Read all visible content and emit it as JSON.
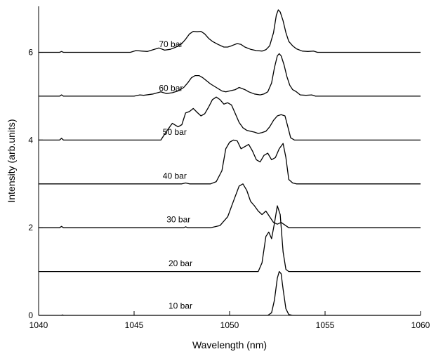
{
  "chart_data": {
    "type": "line",
    "xlabel": "Wavelength (nm)",
    "ylabel": "Intensity (arb.units)",
    "xlim": [
      1040,
      1060
    ],
    "ylim": [
      0,
      7.05
    ],
    "xticks": [
      1040,
      1045,
      1050,
      1055,
      1060
    ],
    "yticks": [
      0,
      2,
      4,
      6
    ],
    "grid": false,
    "legend": "none (labels placed beside each trace)",
    "line_color": "#000000",
    "series": [
      {
        "name": "10 bar",
        "label_at": [
          1046.8,
          0.15
        ],
        "points": [
          [
            1040,
            0
          ],
          [
            1041.2,
            0
          ],
          [
            1041.25,
            0.01
          ],
          [
            1041.3,
            0
          ],
          [
            1052.0,
            0
          ],
          [
            1052.2,
            0.06
          ],
          [
            1052.35,
            0.35
          ],
          [
            1052.5,
            0.85
          ],
          [
            1052.6,
            1.0
          ],
          [
            1052.7,
            0.95
          ],
          [
            1052.8,
            0.6
          ],
          [
            1052.95,
            0.15
          ],
          [
            1053.1,
            0.02
          ],
          [
            1053.3,
            0
          ],
          [
            1060,
            0
          ]
        ]
      },
      {
        "name": "20 bar",
        "label_at": [
          1046.8,
          1.12
        ],
        "points": [
          [
            1040,
            1
          ],
          [
            1051.5,
            1
          ],
          [
            1051.7,
            1.2
          ],
          [
            1051.9,
            1.8
          ],
          [
            1052.05,
            1.9
          ],
          [
            1052.2,
            1.75
          ],
          [
            1052.35,
            2.1
          ],
          [
            1052.5,
            2.5
          ],
          [
            1052.65,
            2.3
          ],
          [
            1052.8,
            1.45
          ],
          [
            1052.95,
            1.05
          ],
          [
            1053.1,
            1.0
          ],
          [
            1060,
            1
          ]
        ]
      },
      {
        "name": "30 bar",
        "label_at": [
          1046.7,
          2.12
        ],
        "points": [
          [
            1040,
            2
          ],
          [
            1041.1,
            2
          ],
          [
            1041.2,
            2.03
          ],
          [
            1041.3,
            2
          ],
          [
            1047.6,
            2
          ],
          [
            1047.7,
            2.02
          ],
          [
            1047.8,
            2
          ],
          [
            1049.0,
            2
          ],
          [
            1049.5,
            2.05
          ],
          [
            1049.9,
            2.25
          ],
          [
            1050.2,
            2.6
          ],
          [
            1050.5,
            2.95
          ],
          [
            1050.7,
            3.0
          ],
          [
            1050.9,
            2.85
          ],
          [
            1051.1,
            2.6
          ],
          [
            1051.3,
            2.5
          ],
          [
            1051.5,
            2.38
          ],
          [
            1051.7,
            2.3
          ],
          [
            1051.9,
            2.38
          ],
          [
            1052.1,
            2.25
          ],
          [
            1052.3,
            2.12
          ],
          [
            1052.5,
            2.08
          ],
          [
            1052.7,
            2.12
          ],
          [
            1052.9,
            2.06
          ],
          [
            1053.1,
            2.0
          ],
          [
            1060,
            2
          ]
        ]
      },
      {
        "name": "40 bar",
        "label_at": [
          1046.5,
          3.12
        ],
        "points": [
          [
            1040,
            3
          ],
          [
            1047.5,
            3
          ],
          [
            1047.7,
            3.02
          ],
          [
            1047.9,
            3
          ],
          [
            1049.0,
            3
          ],
          [
            1049.3,
            3.05
          ],
          [
            1049.6,
            3.3
          ],
          [
            1049.8,
            3.8
          ],
          [
            1050.0,
            3.95
          ],
          [
            1050.2,
            4.0
          ],
          [
            1050.4,
            3.98
          ],
          [
            1050.6,
            3.8
          ],
          [
            1050.8,
            3.85
          ],
          [
            1051.0,
            3.9
          ],
          [
            1051.2,
            3.75
          ],
          [
            1051.4,
            3.55
          ],
          [
            1051.6,
            3.5
          ],
          [
            1051.8,
            3.65
          ],
          [
            1052.0,
            3.7
          ],
          [
            1052.2,
            3.55
          ],
          [
            1052.4,
            3.6
          ],
          [
            1052.6,
            3.8
          ],
          [
            1052.8,
            3.92
          ],
          [
            1052.95,
            3.6
          ],
          [
            1053.1,
            3.1
          ],
          [
            1053.3,
            3.02
          ],
          [
            1053.5,
            3.0
          ],
          [
            1060,
            3
          ]
        ]
      },
      {
        "name": "50 bar",
        "label_at": [
          1046.5,
          4.12
        ],
        "points": [
          [
            1040,
            4
          ],
          [
            1041.1,
            4
          ],
          [
            1041.2,
            4.04
          ],
          [
            1041.3,
            4
          ],
          [
            1046.4,
            4
          ],
          [
            1046.7,
            4.2
          ],
          [
            1047.0,
            4.38
          ],
          [
            1047.3,
            4.3
          ],
          [
            1047.5,
            4.35
          ],
          [
            1047.7,
            4.62
          ],
          [
            1047.9,
            4.65
          ],
          [
            1048.1,
            4.72
          ],
          [
            1048.3,
            4.63
          ],
          [
            1048.5,
            4.55
          ],
          [
            1048.7,
            4.6
          ],
          [
            1048.9,
            4.75
          ],
          [
            1049.1,
            4.92
          ],
          [
            1049.3,
            4.98
          ],
          [
            1049.5,
            4.92
          ],
          [
            1049.7,
            4.82
          ],
          [
            1049.9,
            4.85
          ],
          [
            1050.1,
            4.8
          ],
          [
            1050.3,
            4.6
          ],
          [
            1050.5,
            4.4
          ],
          [
            1050.7,
            4.28
          ],
          [
            1050.9,
            4.22
          ],
          [
            1051.1,
            4.2
          ],
          [
            1051.3,
            4.18
          ],
          [
            1051.5,
            4.15
          ],
          [
            1051.7,
            4.17
          ],
          [
            1051.9,
            4.2
          ],
          [
            1052.1,
            4.3
          ],
          [
            1052.3,
            4.45
          ],
          [
            1052.5,
            4.55
          ],
          [
            1052.7,
            4.58
          ],
          [
            1052.9,
            4.55
          ],
          [
            1053.05,
            4.3
          ],
          [
            1053.2,
            4.05
          ],
          [
            1053.4,
            4.0
          ],
          [
            1060,
            4
          ]
        ]
      },
      {
        "name": "60 bar",
        "label_at": [
          1046.3,
          5.12
        ],
        "points": [
          [
            1040,
            5
          ],
          [
            1041.1,
            5
          ],
          [
            1041.2,
            5.03
          ],
          [
            1041.3,
            5
          ],
          [
            1045.0,
            5
          ],
          [
            1045.3,
            5.03
          ],
          [
            1045.5,
            5.02
          ],
          [
            1046.0,
            5.05
          ],
          [
            1046.4,
            5.1
          ],
          [
            1046.7,
            5.06
          ],
          [
            1047.0,
            5.08
          ],
          [
            1047.3,
            5.12
          ],
          [
            1047.6,
            5.2
          ],
          [
            1047.8,
            5.3
          ],
          [
            1048.0,
            5.42
          ],
          [
            1048.2,
            5.47
          ],
          [
            1048.4,
            5.47
          ],
          [
            1048.6,
            5.42
          ],
          [
            1048.8,
            5.35
          ],
          [
            1049.0,
            5.28
          ],
          [
            1049.3,
            5.2
          ],
          [
            1049.6,
            5.12
          ],
          [
            1049.8,
            5.1
          ],
          [
            1050.0,
            5.12
          ],
          [
            1050.3,
            5.15
          ],
          [
            1050.5,
            5.2
          ],
          [
            1050.8,
            5.15
          ],
          [
            1051.0,
            5.1
          ],
          [
            1051.3,
            5.05
          ],
          [
            1051.6,
            5.03
          ],
          [
            1051.8,
            5.05
          ],
          [
            1052.0,
            5.1
          ],
          [
            1052.2,
            5.3
          ],
          [
            1052.35,
            5.65
          ],
          [
            1052.5,
            5.92
          ],
          [
            1052.6,
            5.97
          ],
          [
            1052.7,
            5.92
          ],
          [
            1052.85,
            5.72
          ],
          [
            1053.0,
            5.45
          ],
          [
            1053.15,
            5.25
          ],
          [
            1053.3,
            5.15
          ],
          [
            1053.5,
            5.1
          ],
          [
            1053.7,
            5.03
          ],
          [
            1054.0,
            5.02
          ],
          [
            1054.3,
            5.03
          ],
          [
            1054.5,
            5
          ],
          [
            1060,
            5
          ]
        ]
      },
      {
        "name": "70 bar",
        "label_at": [
          1046.3,
          6.12
        ],
        "points": [
          [
            1040,
            6
          ],
          [
            1041.1,
            6
          ],
          [
            1041.2,
            6.02
          ],
          [
            1041.3,
            6
          ],
          [
            1044.8,
            6
          ],
          [
            1045.1,
            6.04
          ],
          [
            1045.4,
            6.03
          ],
          [
            1045.7,
            6.02
          ],
          [
            1046.0,
            6.06
          ],
          [
            1046.3,
            6.1
          ],
          [
            1046.6,
            6.05
          ],
          [
            1046.9,
            6.07
          ],
          [
            1047.2,
            6.12
          ],
          [
            1047.5,
            6.2
          ],
          [
            1047.7,
            6.3
          ],
          [
            1047.9,
            6.42
          ],
          [
            1048.1,
            6.48
          ],
          [
            1048.3,
            6.47
          ],
          [
            1048.5,
            6.48
          ],
          [
            1048.7,
            6.42
          ],
          [
            1048.9,
            6.32
          ],
          [
            1049.1,
            6.25
          ],
          [
            1049.4,
            6.18
          ],
          [
            1049.7,
            6.12
          ],
          [
            1049.9,
            6.12
          ],
          [
            1050.1,
            6.15
          ],
          [
            1050.4,
            6.2
          ],
          [
            1050.6,
            6.18
          ],
          [
            1050.8,
            6.12
          ],
          [
            1051.1,
            6.07
          ],
          [
            1051.4,
            6.04
          ],
          [
            1051.7,
            6.03
          ],
          [
            1051.9,
            6.06
          ],
          [
            1052.1,
            6.15
          ],
          [
            1052.3,
            6.45
          ],
          [
            1052.45,
            6.85
          ],
          [
            1052.55,
            6.97
          ],
          [
            1052.65,
            6.92
          ],
          [
            1052.8,
            6.72
          ],
          [
            1052.95,
            6.45
          ],
          [
            1053.1,
            6.25
          ],
          [
            1053.3,
            6.15
          ],
          [
            1053.5,
            6.08
          ],
          [
            1053.8,
            6.03
          ],
          [
            1054.1,
            6.02
          ],
          [
            1054.4,
            6.03
          ],
          [
            1054.6,
            6
          ],
          [
            1060,
            6
          ]
        ]
      }
    ]
  }
}
